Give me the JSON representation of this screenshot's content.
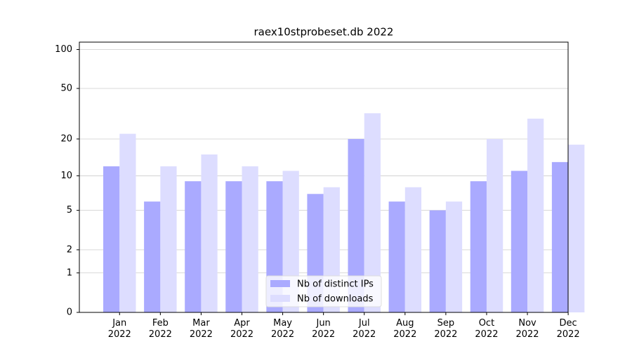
{
  "chart_data": {
    "type": "bar",
    "title": "raex10stprobeset.db 2022",
    "categories": [
      "Jan\n2022",
      "Feb\n2022",
      "Mar\n2022",
      "Apr\n2022",
      "May\n2022",
      "Jun\n2022",
      "Jul\n2022",
      "Aug\n2022",
      "Sep\n2022",
      "Oct\n2022",
      "Nov\n2022",
      "Dec\n2022"
    ],
    "series": [
      {
        "name": "Nb of distinct IPs",
        "color": "#aaaaff",
        "values": [
          12,
          6,
          9,
          9,
          9,
          7,
          20,
          6,
          5,
          9,
          11,
          13
        ]
      },
      {
        "name": "Nb of downloads",
        "color": "#ddddff",
        "values": [
          22,
          12,
          15,
          12,
          11,
          8,
          32,
          8,
          6,
          20,
          29,
          18
        ]
      }
    ],
    "yscale": "log1p",
    "ylim": [
      0,
      114
    ],
    "yticks": [
      0,
      1,
      2,
      5,
      10,
      20,
      50,
      100
    ],
    "grid": true,
    "legend": "lower center"
  }
}
